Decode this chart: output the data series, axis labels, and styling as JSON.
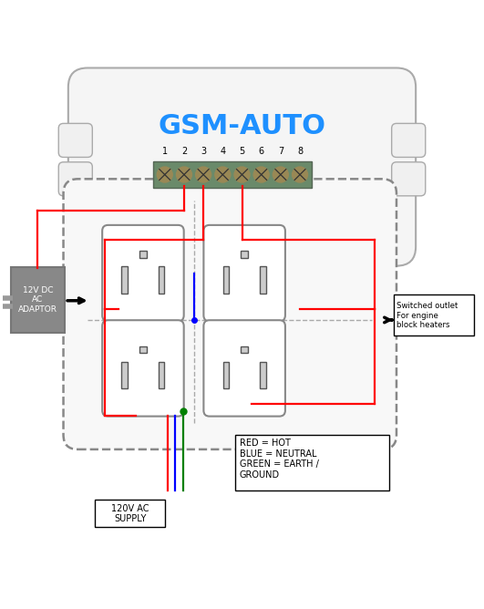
{
  "title": "GSM-AUTO",
  "title_color": "#1E90FF",
  "title_fontsize": 22,
  "bg_color": "#FFFFFF",
  "terminal_labels": [
    "1",
    "2",
    "3",
    "4",
    "5",
    "6",
    "7",
    "8"
  ],
  "wire_red": "#FF0000",
  "wire_blue": "#0000FF",
  "wire_green": "#008000",
  "wire_gray": "#888888",
  "label_switched": "Switched outlet\nFor engine\nblock heaters",
  "label_supply": "120V AC\nSUPPLY",
  "label_legend": "RED = HOT\nBLUE = NEUTRAL\nGREEN = EARTH /\nGROUND",
  "label_adaptor": "12V DC\nAC\nADAPTOR"
}
